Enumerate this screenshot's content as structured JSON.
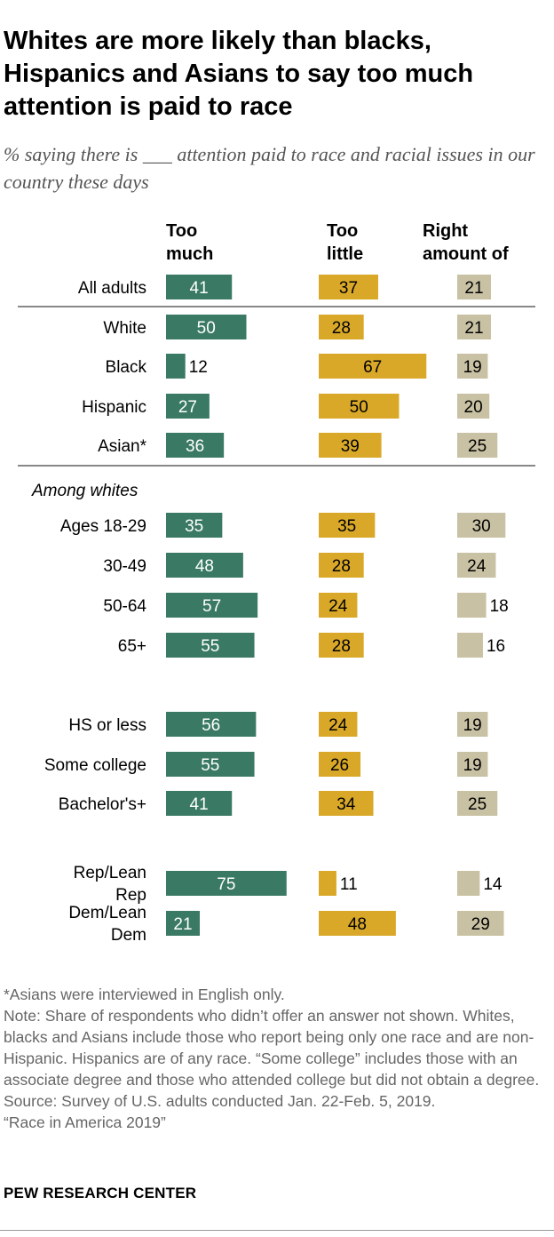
{
  "title": "Whites are more likely than blacks, Hispanics and Asians to say too much attention is paid to race",
  "subtitle": "% saying there is ___ attention paid to race and racial issues in our country these days",
  "columns": [
    "Too much",
    "Too little",
    "Right amount of"
  ],
  "colors": {
    "too_much": "#3a7a65",
    "too_little": "#d9a829",
    "right_amount": "#c8c1a3",
    "divider": "#888888"
  },
  "chart_data": {
    "type": "bar",
    "orientation": "horizontal",
    "title": "Whites are more likely than blacks, Hispanics and Asians to say too much attention is paid to race",
    "series": [
      {
        "name": "Too much",
        "values": [
          41,
          50,
          12,
          27,
          36,
          35,
          48,
          57,
          55,
          56,
          55,
          41,
          75,
          21
        ]
      },
      {
        "name": "Too little",
        "values": [
          37,
          28,
          67,
          50,
          39,
          35,
          28,
          24,
          28,
          24,
          26,
          34,
          11,
          48
        ]
      },
      {
        "name": "Right amount of",
        "values": [
          21,
          21,
          19,
          20,
          25,
          30,
          24,
          18,
          16,
          19,
          19,
          25,
          14,
          29
        ]
      }
    ],
    "categories": [
      "All adults",
      "White",
      "Black",
      "Hispanic",
      "Asian*",
      "Ages 18-29",
      "30-49",
      "50-64",
      "65+",
      "HS or less",
      "Some college",
      "Bachelor's+",
      "Rep/Lean Rep",
      "Dem/Lean Dem"
    ],
    "group_label": "Among whites"
  },
  "notes": {
    "asterisk": "*Asians were interviewed in English only.",
    "note": "Note: Share of respondents who didn’t offer an answer not shown. Whites, blacks and Asians include those who report being only one race and are non-Hispanic. Hispanics are of any race. “Some college” includes those with an associate degree and those who attended college but did not obtain a degree.",
    "source": "Source: Survey of U.S. adults conducted Jan. 22-Feb. 5, 2019.",
    "report": "“Race in America 2019”"
  },
  "footer": "PEW RESEARCH CENTER"
}
